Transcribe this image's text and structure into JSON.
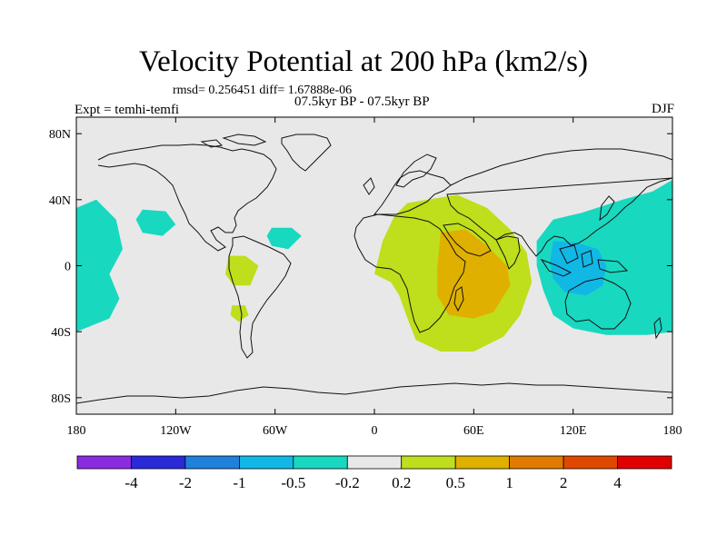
{
  "chart_data": {
    "type": "heatmap",
    "title": "Velocity Potential at 200 hPa (km2/s)",
    "subtitle_stats": "rmsd= 0.256451 diff= 1.67888e-06",
    "period": "07.5kyr BP - 07.5kyr BP",
    "experiment": "Expt = temhi-temfi",
    "season": "DJF",
    "xlim": [
      -180,
      180
    ],
    "ylim": [
      -90,
      90
    ],
    "x_ticks": [
      {
        "value": -180,
        "label": "180"
      },
      {
        "value": -120,
        "label": "120W"
      },
      {
        "value": -60,
        "label": "60W"
      },
      {
        "value": 0,
        "label": "0"
      },
      {
        "value": 60,
        "label": "60E"
      },
      {
        "value": 120,
        "label": "120E"
      },
      {
        "value": 180,
        "label": "180"
      }
    ],
    "y_ticks": [
      {
        "value": 80,
        "label": "80N"
      },
      {
        "value": 40,
        "label": "40N"
      },
      {
        "value": 0,
        "label": "0"
      },
      {
        "value": -40,
        "label": "40S"
      },
      {
        "value": -80,
        "label": "80S"
      }
    ],
    "colorbar": {
      "levels": [
        "-4",
        "-2",
        "-1",
        "-0.5",
        "-0.2",
        "0.2",
        "0.5",
        "1",
        "2",
        "4"
      ],
      "colors": [
        "#8a2be2",
        "#2a2ad8",
        "#1e82dc",
        "#11b8e6",
        "#18d8c0",
        "#e8e8e8",
        "#bfde1b",
        "#e0b000",
        "#e07a00",
        "#e04800",
        "#e00000"
      ]
    },
    "regions": [
      {
        "name": "indian-ocean-positive",
        "level_index": 6,
        "outline": [
          [
            20,
            38
          ],
          [
            50,
            43
          ],
          [
            68,
            35
          ],
          [
            82,
            22
          ],
          [
            92,
            8
          ],
          [
            95,
            -10
          ],
          [
            88,
            -30
          ],
          [
            78,
            -43
          ],
          [
            60,
            -52
          ],
          [
            40,
            -52
          ],
          [
            25,
            -45
          ],
          [
            20,
            -32
          ],
          [
            15,
            -18
          ],
          [
            10,
            -10
          ],
          [
            0,
            -5
          ],
          [
            5,
            15
          ],
          [
            12,
            30
          ]
        ]
      },
      {
        "name": "africa-core",
        "level_index": 7,
        "outline": [
          [
            40,
            20
          ],
          [
            55,
            22
          ],
          [
            68,
            12
          ],
          [
            80,
            0
          ],
          [
            82,
            -12
          ],
          [
            72,
            -28
          ],
          [
            60,
            -32
          ],
          [
            45,
            -30
          ],
          [
            38,
            -18
          ],
          [
            38,
            -2
          ]
        ]
      },
      {
        "name": "maritime-continent-negative",
        "level_index": 4,
        "outline": [
          [
            98,
            15
          ],
          [
            108,
            28
          ],
          [
            125,
            32
          ],
          [
            150,
            40
          ],
          [
            168,
            45
          ],
          [
            180,
            52
          ],
          [
            180,
            -40
          ],
          [
            165,
            -42
          ],
          [
            140,
            -42
          ],
          [
            120,
            -38
          ],
          [
            108,
            -30
          ],
          [
            102,
            -15
          ],
          [
            98,
            0
          ]
        ]
      },
      {
        "name": "maritime-continent-core",
        "level_index": 3,
        "outline": [
          [
            108,
            15
          ],
          [
            122,
            14
          ],
          [
            135,
            10
          ],
          [
            140,
            0
          ],
          [
            138,
            -12
          ],
          [
            128,
            -18
          ],
          [
            115,
            -16
          ],
          [
            108,
            -8
          ],
          [
            106,
            2
          ]
        ]
      },
      {
        "name": "dateline-west-negative",
        "level_index": 4,
        "outline": [
          [
            -180,
            35
          ],
          [
            -168,
            40
          ],
          [
            -156,
            28
          ],
          [
            -152,
            10
          ],
          [
            -160,
            -5
          ],
          [
            -154,
            -20
          ],
          [
            -160,
            -32
          ],
          [
            -180,
            -40
          ]
        ]
      },
      {
        "name": "north-pacific-negative",
        "level_index": 4,
        "outline": [
          [
            -140,
            34
          ],
          [
            -126,
            33
          ],
          [
            -120,
            25
          ],
          [
            -128,
            18
          ],
          [
            -140,
            20
          ],
          [
            -144,
            28
          ]
        ]
      },
      {
        "name": "north-atlantic-negative",
        "level_index": 4,
        "outline": [
          [
            -62,
            23
          ],
          [
            -50,
            23
          ],
          [
            -44,
            18
          ],
          [
            -52,
            10
          ],
          [
            -62,
            12
          ],
          [
            -65,
            18
          ]
        ]
      },
      {
        "name": "south-america-positive",
        "level_index": 6,
        "outline": [
          [
            -88,
            6
          ],
          [
            -78,
            6
          ],
          [
            -70,
            0
          ],
          [
            -75,
            -12
          ],
          [
            -85,
            -12
          ],
          [
            -90,
            -5
          ]
        ]
      },
      {
        "name": "south-america-small-positive",
        "level_index": 6,
        "outline": [
          [
            -86,
            -24
          ],
          [
            -78,
            -24
          ],
          [
            -76,
            -30
          ],
          [
            -82,
            -34
          ],
          [
            -87,
            -30
          ]
        ]
      }
    ]
  }
}
